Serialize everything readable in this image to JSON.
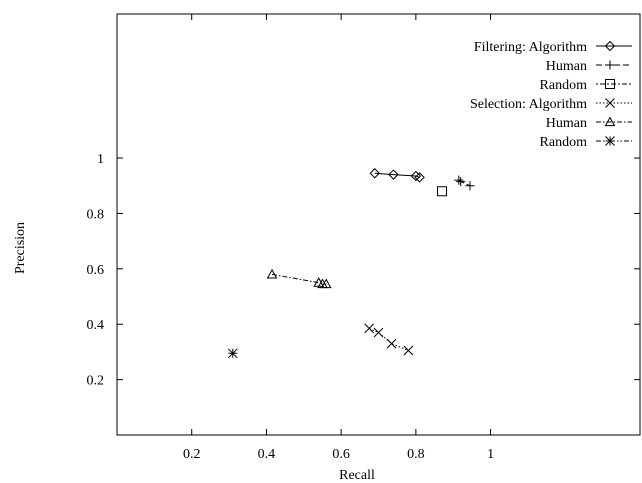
{
  "chart_data": {
    "type": "scatter",
    "title": "",
    "xlabel": "Recall",
    "ylabel": "Precision",
    "xlim": [
      0,
      1.4
    ],
    "ylim": [
      0,
      1.52
    ],
    "grid": false,
    "legend_position": "top-right",
    "x_ticks": [
      {
        "value": 0.2,
        "label": "0.2"
      },
      {
        "value": 0.4,
        "label": "0.4"
      },
      {
        "value": 0.6,
        "label": "0.6"
      },
      {
        "value": 0.8,
        "label": "0.8"
      },
      {
        "value": 1.0,
        "label": "1"
      }
    ],
    "y_ticks": [
      {
        "value": 0.2,
        "label": "0.2"
      },
      {
        "value": 0.4,
        "label": "0.4"
      },
      {
        "value": 0.6,
        "label": "0.6"
      },
      {
        "value": 0.8,
        "label": "0.8"
      },
      {
        "value": 1.0,
        "label": "1"
      }
    ],
    "series": [
      {
        "name": "Filtering: Algorithm",
        "marker": "diamond",
        "line_style": "solid",
        "points": [
          [
            0.69,
            0.945
          ],
          [
            0.74,
            0.94
          ],
          [
            0.8,
            0.935
          ],
          [
            0.81,
            0.93
          ]
        ]
      },
      {
        "name": "Human",
        "marker": "plus",
        "line_style": "dashed",
        "points": [
          [
            0.915,
            0.92
          ],
          [
            0.92,
            0.915
          ],
          [
            0.945,
            0.9
          ]
        ]
      },
      {
        "name": "Random",
        "marker": "square",
        "line_style": "dotted-dashed",
        "points": [
          [
            0.87,
            0.88
          ]
        ]
      },
      {
        "name": "Selection: Algorithm",
        "marker": "cross",
        "line_style": "dotted",
        "points": [
          [
            0.675,
            0.385
          ],
          [
            0.7,
            0.37
          ],
          [
            0.735,
            0.33
          ],
          [
            0.78,
            0.305
          ]
        ]
      },
      {
        "name": "Human",
        "marker": "triangle",
        "line_style": "dash-dot",
        "points": [
          [
            0.415,
            0.58
          ],
          [
            0.54,
            0.55
          ],
          [
            0.55,
            0.545
          ],
          [
            0.56,
            0.545
          ]
        ]
      },
      {
        "name": "Random",
        "marker": "star",
        "line_style": "dash-dot-dot",
        "points": [
          [
            0.31,
            0.295
          ]
        ]
      }
    ]
  }
}
